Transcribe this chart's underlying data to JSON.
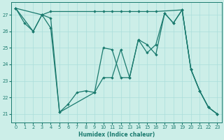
{
  "bg_color": "#cceee8",
  "grid_color": "#aaddda",
  "line_color": "#1a7a6e",
  "xlabel": "Humidex (Indice chaleur)",
  "xlim": [
    -0.5,
    23.5
  ],
  "ylim": [
    20.5,
    27.75
  ],
  "xticks": [
    0,
    1,
    2,
    3,
    4,
    5,
    6,
    7,
    8,
    9,
    10,
    11,
    12,
    13,
    14,
    15,
    16,
    17,
    18,
    19,
    20,
    21,
    22,
    23
  ],
  "yticks": [
    21,
    22,
    23,
    24,
    25,
    26,
    27
  ],
  "figsize": [
    3.2,
    2.0
  ],
  "dpi": 100,
  "line1_x": [
    0,
    1,
    2,
    3,
    4,
    5,
    6,
    7,
    8,
    9,
    10,
    11,
    12,
    13,
    14,
    15,
    16,
    17,
    18,
    19,
    20,
    21,
    22,
    23
  ],
  "line1_y": [
    27.4,
    26.5,
    26.0,
    27.0,
    26.2,
    21.1,
    21.6,
    22.3,
    22.4,
    22.3,
    23.2,
    23.2,
    24.9,
    23.2,
    25.5,
    25.2,
    24.6,
    27.1,
    26.5,
    27.3,
    23.7,
    22.4,
    21.4,
    21.0
  ],
  "line2_x": [
    0,
    3,
    4,
    9,
    10,
    11,
    12,
    13,
    14,
    15,
    16,
    19,
    20,
    21,
    22,
    23
  ],
  "line2_y": [
    27.4,
    27.0,
    27.2,
    27.2,
    27.2,
    27.2,
    27.2,
    27.2,
    27.2,
    27.2,
    27.2,
    27.3,
    23.7,
    22.4,
    21.4,
    21.0
  ],
  "line3_x": [
    0,
    2,
    3,
    4,
    5,
    9,
    10,
    11,
    12,
    13,
    14,
    15,
    16,
    17,
    18,
    19,
    20,
    21,
    22,
    23
  ],
  "line3_y": [
    27.4,
    26.0,
    27.0,
    26.8,
    21.1,
    22.3,
    25.0,
    24.9,
    23.2,
    23.2,
    25.5,
    24.7,
    25.2,
    27.1,
    26.5,
    27.3,
    23.7,
    22.4,
    21.4,
    21.0
  ]
}
